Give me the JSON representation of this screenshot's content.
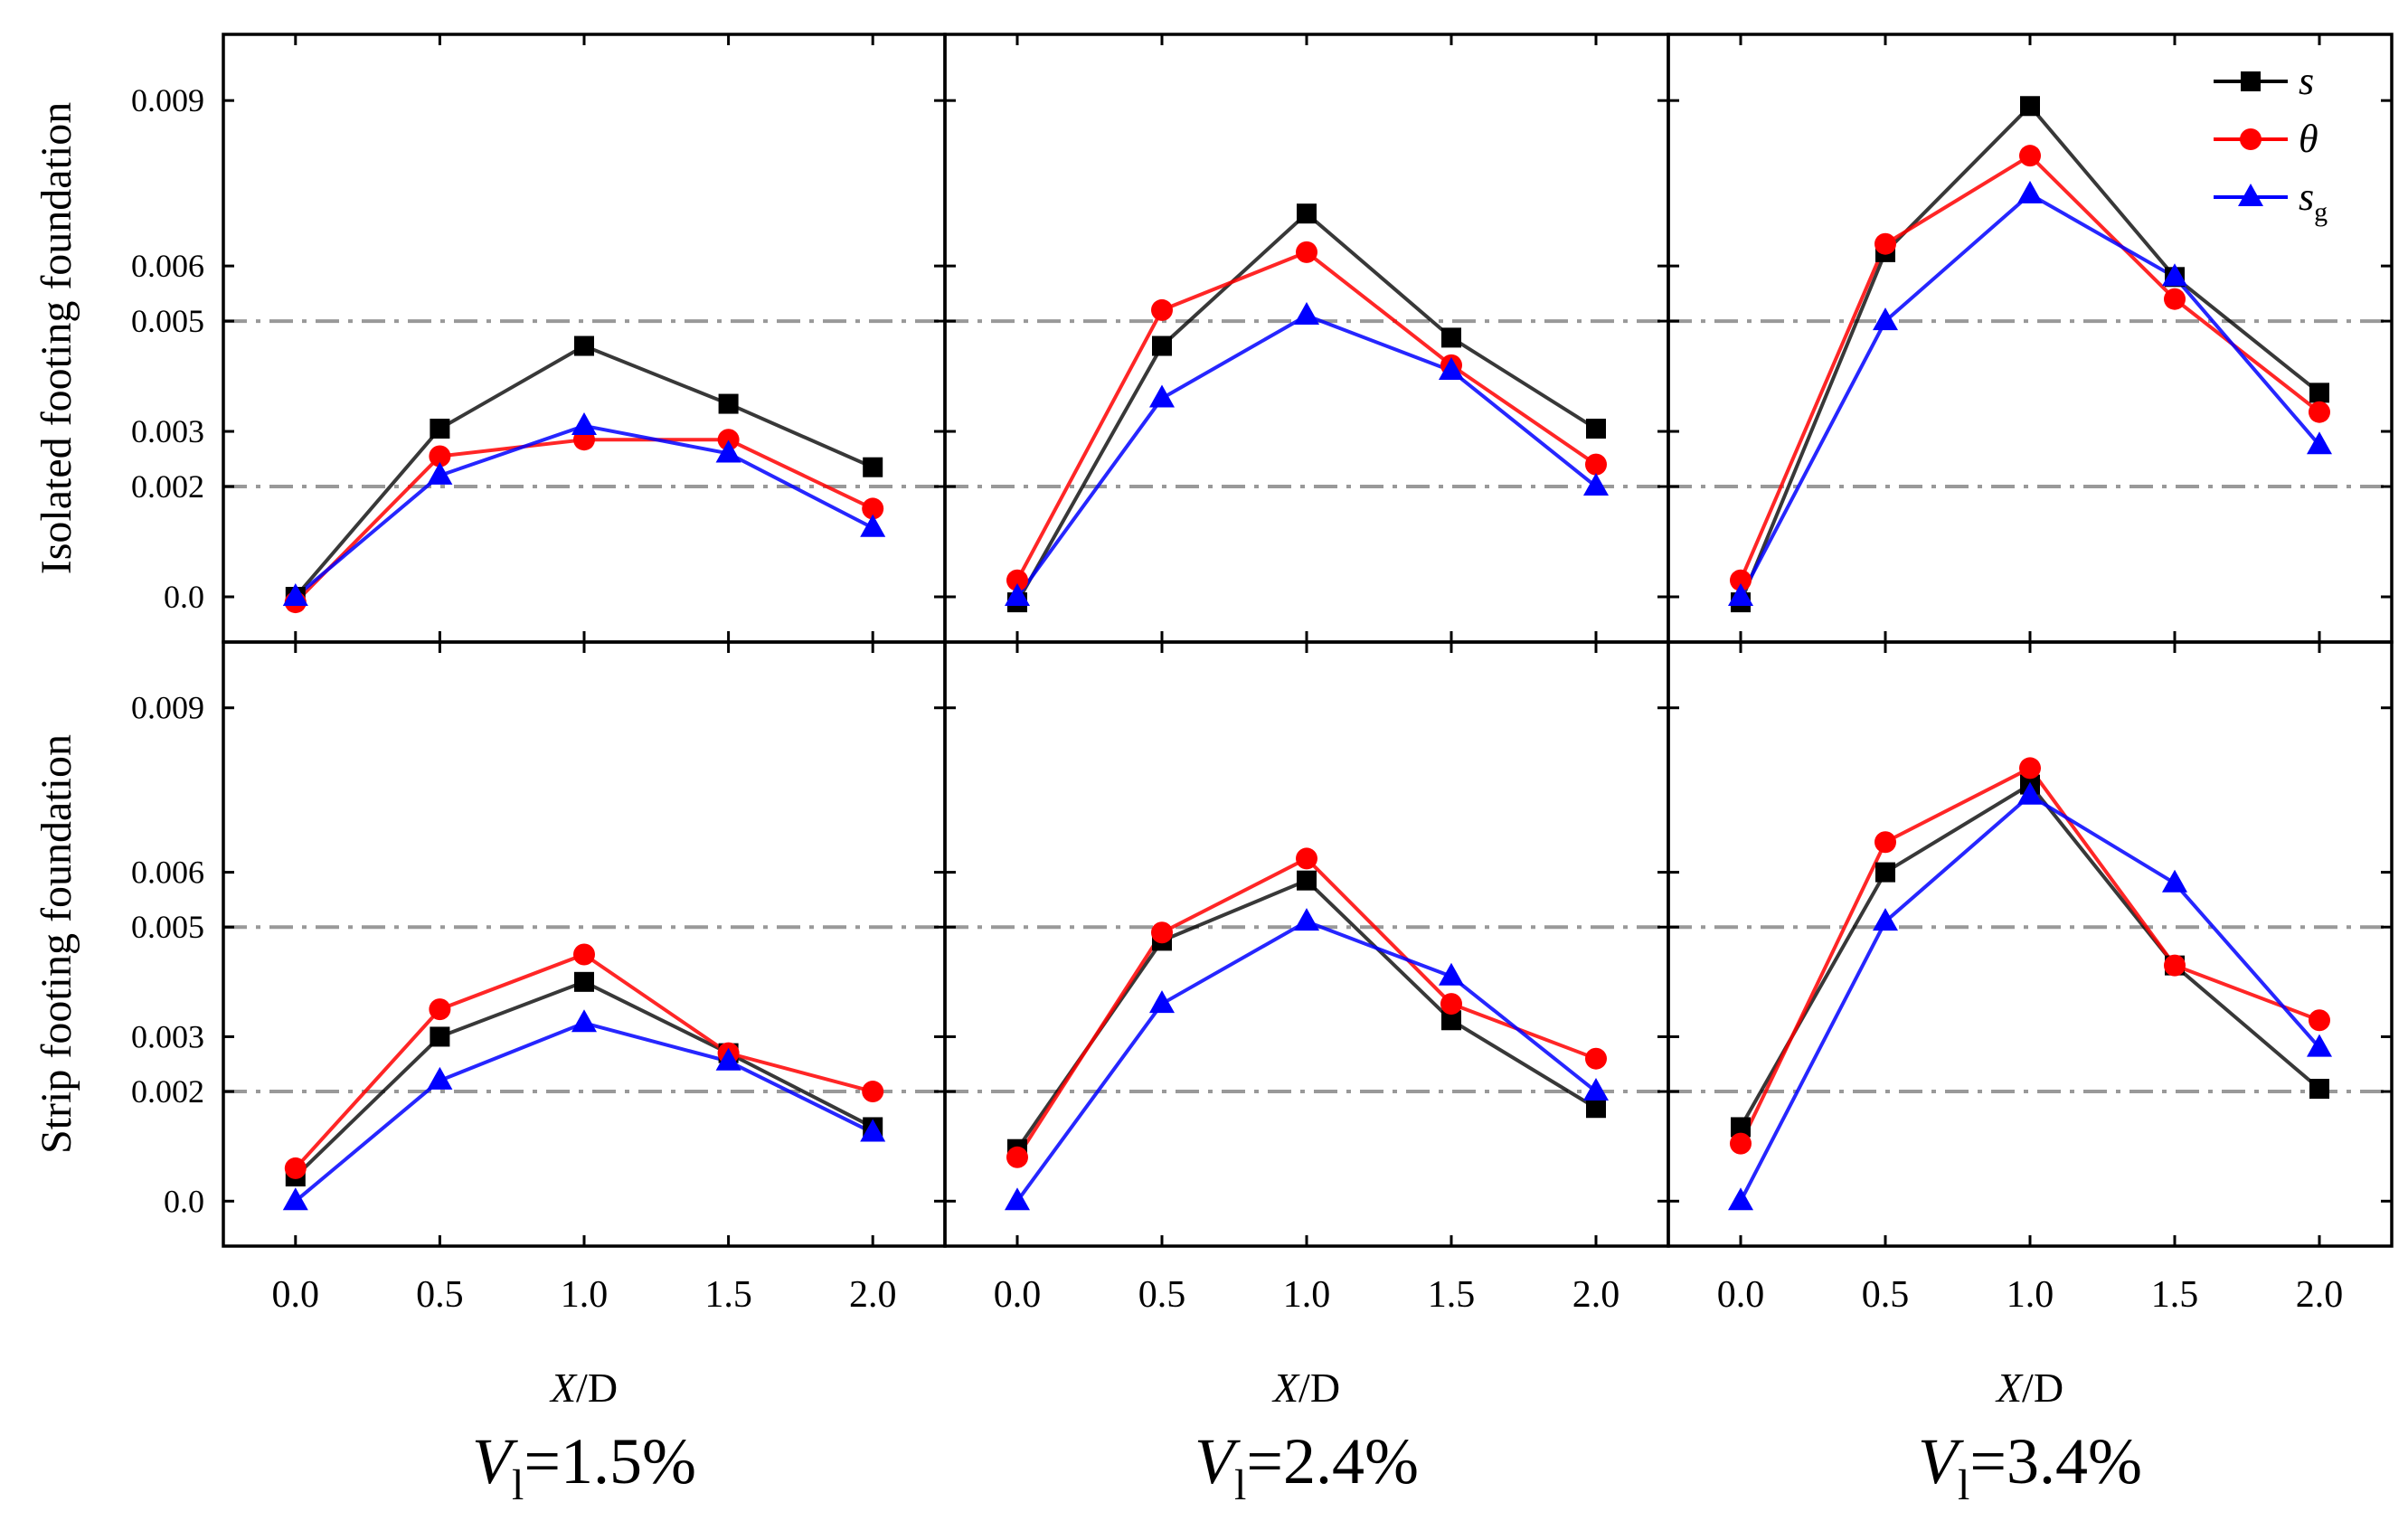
{
  "chart_data": {
    "type": "line",
    "x": [
      0.0,
      0.5,
      1.0,
      1.5,
      2.0
    ],
    "x_tick_labels": [
      "0.0",
      "0.5",
      "1.0",
      "1.5",
      "2.0"
    ],
    "y_ticks": [
      0.0,
      0.002,
      0.003,
      0.005,
      0.006,
      0.009
    ],
    "y_tick_labels": [
      "0.0",
      "0.002",
      "0.003",
      "0.005",
      "0.006",
      "0.009"
    ],
    "ylim": [
      -0.00082,
      0.0102
    ],
    "xlim": [
      -0.25,
      2.25
    ],
    "reference_lines_y": [
      0.002,
      0.005
    ],
    "xlabel_italic": "X",
    "xlabel_rest": "/D",
    "row_labels": [
      "Isolated footing foundation",
      "Strip footing foundation"
    ],
    "legend": {
      "position": "top-right of top-right panel",
      "entries": [
        {
          "key": "s",
          "symbol": "s",
          "sub": ""
        },
        {
          "key": "theta",
          "symbol": "θ",
          "sub": ""
        },
        {
          "key": "sg",
          "symbol": "s",
          "sub": "g"
        }
      ]
    },
    "series_style": {
      "s": {
        "color": "#000000",
        "marker": "square"
      },
      "theta": {
        "color": "#ff0000",
        "marker": "circle"
      },
      "sg": {
        "color": "#0000ff",
        "marker": "triangle"
      }
    },
    "columns": [
      {
        "v_label": "V",
        "v_sub": "l",
        "v_value": "=1.5%",
        "panels": [
          {
            "row": "isolated",
            "series": {
              "s": [
                0.0,
                0.00305,
                0.00455,
                0.0035,
                0.00235
              ],
              "theta": [
                -0.0001,
                0.00255,
                0.00285,
                0.00285,
                0.0016
              ],
              "sg": [
                0.0,
                0.0022,
                0.0031,
                0.0026,
                0.00125
              ]
            }
          },
          {
            "row": "strip",
            "series": {
              "s": [
                0.00045,
                0.003,
                0.004,
                0.0027,
                0.00135
              ],
              "theta": [
                0.0006,
                0.0035,
                0.0045,
                0.0027,
                0.002
              ],
              "sg": [
                0.0,
                0.0022,
                0.00325,
                0.00255,
                0.00125
              ]
            }
          }
        ]
      },
      {
        "v_label": "V",
        "v_sub": "l",
        "v_value": "=2.4%",
        "panels": [
          {
            "row": "isolated",
            "series": {
              "s": [
                -0.0001,
                0.00455,
                0.00695,
                0.0047,
                0.00305
              ],
              "theta": [
                0.0003,
                0.0052,
                0.00625,
                0.0042,
                0.0024
              ],
              "sg": [
                0.0,
                0.0036,
                0.0051,
                0.0041,
                0.002
              ]
            }
          },
          {
            "row": "strip",
            "series": {
              "s": [
                0.00095,
                0.00475,
                0.00585,
                0.0033,
                0.0017
              ],
              "theta": [
                0.0008,
                0.0049,
                0.00625,
                0.0036,
                0.0026
              ],
              "sg": [
                0.0,
                0.0036,
                0.0051,
                0.0041,
                0.002
              ]
            }
          }
        ]
      },
      {
        "v_label": "V",
        "v_sub": "l",
        "v_value": "=3.4%",
        "panels": [
          {
            "row": "isolated",
            "series": {
              "s": [
                -0.0001,
                0.00625,
                0.0089,
                0.0058,
                0.0037
              ],
              "theta": [
                0.0003,
                0.0064,
                0.008,
                0.0054,
                0.00335
              ],
              "sg": [
                0.0,
                0.005,
                0.0073,
                0.0058,
                0.00275
              ]
            }
          },
          {
            "row": "strip",
            "series": {
              "s": [
                0.00135,
                0.006,
                0.0076,
                0.0043,
                0.00205
              ],
              "theta": [
                0.00105,
                0.00655,
                0.0079,
                0.0043,
                0.0033
              ],
              "sg": [
                0.0,
                0.0051,
                0.0074,
                0.0058,
                0.0028
              ]
            }
          }
        ]
      }
    ]
  }
}
